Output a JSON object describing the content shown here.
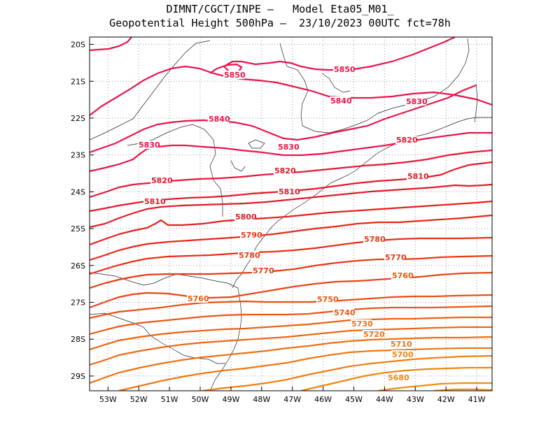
{
  "title_line1": "DIMNT/CGCT/INPE –   Model Eta05_M01_",
  "title_line2": "Geopotential Height 500hPa –  23/10/2023 00UTC fct=78h",
  "chart_data": {
    "type": "contour",
    "variable": "Geopotential Height 500hPa",
    "x_ticks": [
      "53W",
      "52W",
      "51W",
      "50W",
      "49W",
      "48W",
      "47W",
      "46W",
      "45W",
      "44W",
      "43W",
      "42W",
      "41W"
    ],
    "y_ticks": [
      "20S",
      "21S",
      "22S",
      "23S",
      "24S",
      "25S",
      "26S",
      "27S",
      "28S",
      "29S"
    ],
    "xlim": [
      -53.6,
      -40.5
    ],
    "ylim": [
      -29.4,
      -19.8
    ],
    "contour_levels": [
      5680,
      5690,
      5700,
      5710,
      5720,
      5730,
      5740,
      5750,
      5760,
      5770,
      5780,
      5790,
      5800,
      5810,
      5820,
      5830,
      5840,
      5850
    ],
    "contour_labels": [
      {
        "text": "5850"
      },
      {
        "text": "5850"
      },
      {
        "text": "5840"
      },
      {
        "text": "5840"
      },
      {
        "text": "5830"
      },
      {
        "text": "5830"
      },
      {
        "text": "5830"
      },
      {
        "text": "5820"
      },
      {
        "text": "5820"
      },
      {
        "text": "5820"
      },
      {
        "text": "5810"
      },
      {
        "text": "5810"
      },
      {
        "text": "5810"
      },
      {
        "text": "5800"
      },
      {
        "text": "5790"
      },
      {
        "text": "5780"
      },
      {
        "text": "5780"
      },
      {
        "text": "5770"
      },
      {
        "text": "5770"
      },
      {
        "text": "5760"
      },
      {
        "text": "5760"
      },
      {
        "text": "5750"
      },
      {
        "text": "5740"
      },
      {
        "text": "5730"
      },
      {
        "text": "5720"
      },
      {
        "text": "5710"
      },
      {
        "text": "5700"
      },
      {
        "text": "5680"
      }
    ]
  }
}
